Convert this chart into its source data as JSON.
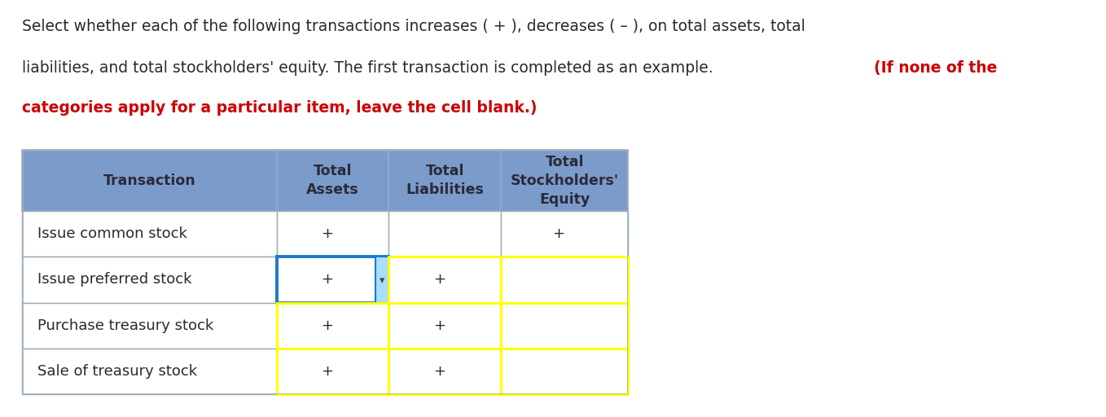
{
  "header_bg": "#7b9cca",
  "header_text_color": "#2a2a3a",
  "row_bg": "#ffffff",
  "border_color": "#9aaabb",
  "yellow_border": "#ffff00",
  "blue_border": "#1a7acc",
  "cyan_fill": "#aaddff",
  "col_headers": [
    "Transaction",
    "Total\nAssets",
    "Total\nLiabilities",
    "Total\nStockholders'\nEquity"
  ],
  "rows": [
    [
      "Issue common stock",
      "+",
      "",
      "+"
    ],
    [
      "Issue preferred stock",
      "+",
      "+",
      ""
    ],
    [
      "Purchase treasury stock",
      "+",
      "+",
      ""
    ],
    [
      "Sale of treasury stock",
      "+",
      "+",
      ""
    ]
  ],
  "highlighted_rows": [
    1,
    2,
    3
  ],
  "blue_cell_row": 1,
  "blue_cell_col": 1,
  "figsize": [
    13.58,
    5.12
  ],
  "dpi": 100,
  "text_line1": "Select whether each of the following transactions increases ( + ), decreases ( – ), on total assets, total",
  "text_line2_black": "liabilities, and total stockholders' equity. The first transaction is completed as an example. ",
  "text_line2_red": "(If none of the",
  "text_line3_red": "categories apply for a particular item, leave the cell blank.)",
  "text_fontsize": 13.5
}
